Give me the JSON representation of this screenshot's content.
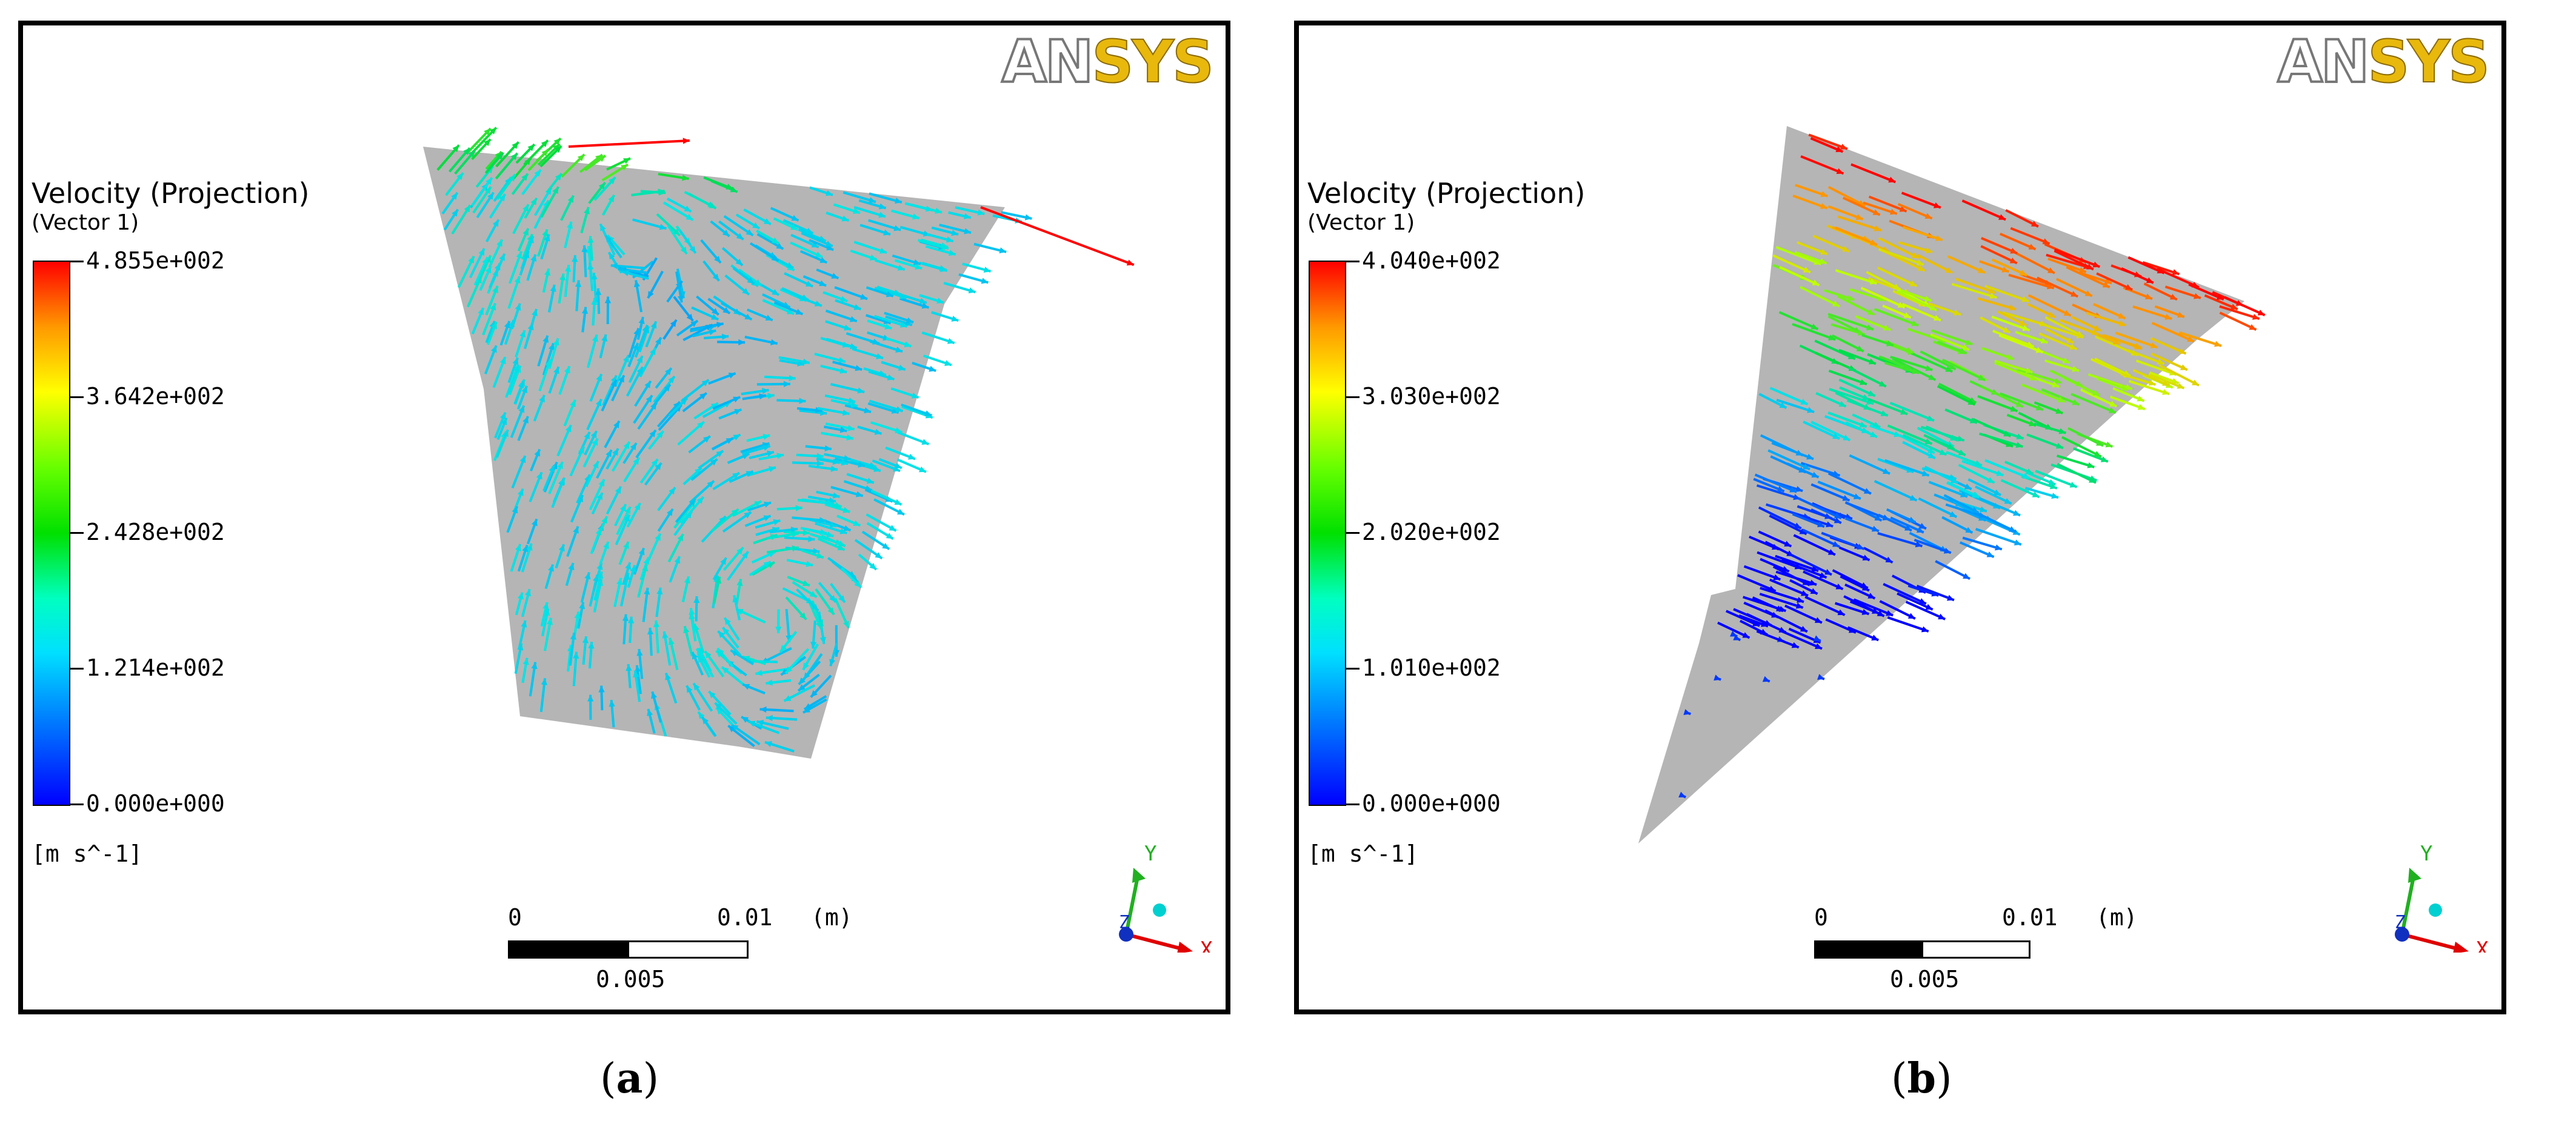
{
  "panels": [
    {
      "id": "a",
      "logo": {
        "an": "AN",
        "sys": "SYS"
      },
      "legend": {
        "title": "Velocity (Projection)",
        "subtitle": "(Vector 1)",
        "ticks": [
          "4.855e+002",
          "3.642e+002",
          "2.428e+002",
          "1.214e+002",
          "0.000e+000"
        ],
        "units": "[m s^-1]",
        "max": 485.5
      },
      "scale_bar": {
        "start": "0",
        "end": "0.01",
        "unit": "(m)",
        "mid": "0.005"
      },
      "axes": {
        "x": "X",
        "y": "Y",
        "z": "Z"
      },
      "caption": "a"
    },
    {
      "id": "b",
      "logo": {
        "an": "AN",
        "sys": "SYS"
      },
      "legend": {
        "title": "Velocity (Projection)",
        "subtitle": "(Vector 1)",
        "ticks": [
          "4.040e+002",
          "3.030e+002",
          "2.020e+002",
          "1.010e+002",
          "0.000e+000"
        ],
        "units": "[m s^-1]",
        "max": 404.0
      },
      "scale_bar": {
        "start": "0",
        "end": "0.01",
        "unit": "(m)",
        "mid": "0.005"
      },
      "axes": {
        "x": "X",
        "y": "Y",
        "z": "Z"
      },
      "caption": "b"
    }
  ]
}
